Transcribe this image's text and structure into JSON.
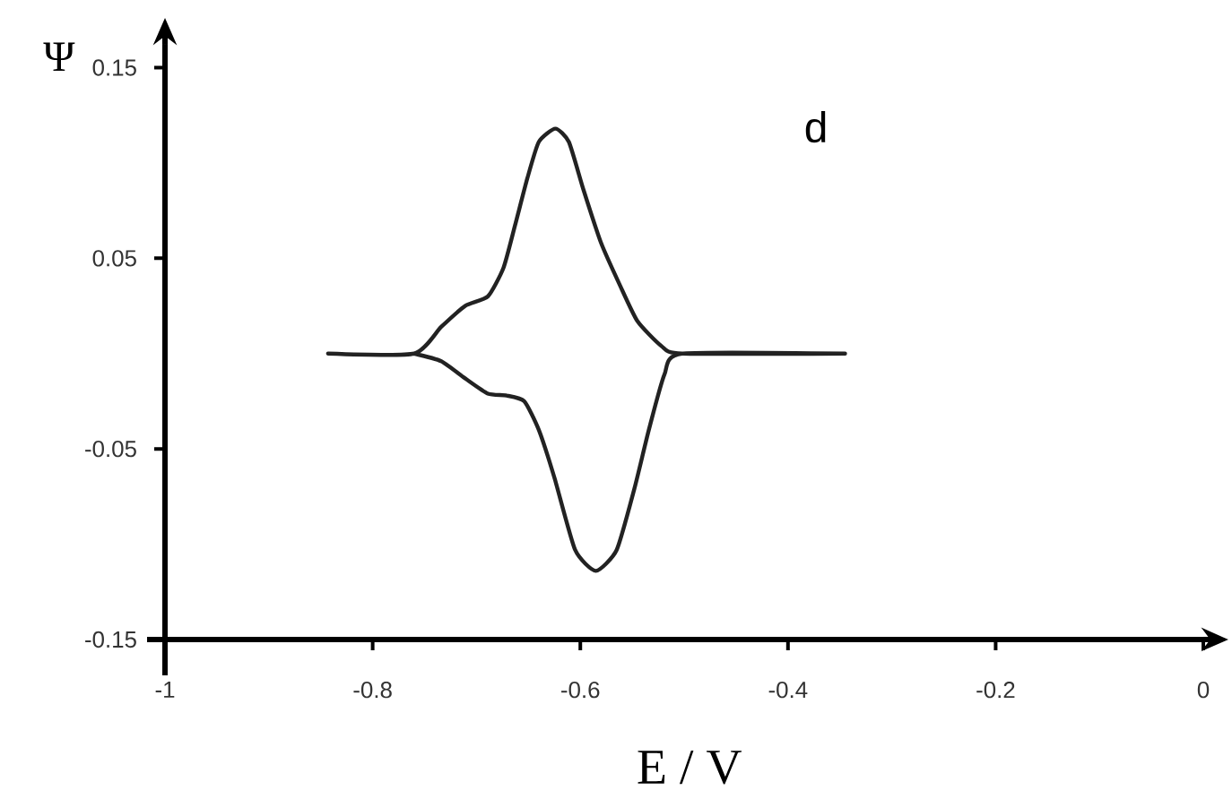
{
  "chart_data": {
    "type": "line",
    "xlabel": "E / V",
    "ylabel": "Ψ",
    "annotations": [
      "d"
    ],
    "x": [
      -0.843,
      -0.76,
      -0.734,
      -0.711,
      -0.689,
      -0.674,
      -0.663,
      -0.651,
      -0.64,
      -0.624,
      -0.611,
      -0.597,
      -0.58,
      -0.562,
      -0.545,
      -0.522,
      -0.502,
      -0.345,
      -0.502,
      -0.519,
      -0.534,
      -0.548,
      -0.565,
      -0.585,
      -0.605,
      -0.625,
      -0.64,
      -0.654,
      -0.671,
      -0.689,
      -0.711,
      -0.734,
      -0.76
    ],
    "series": [
      {
        "color": "#222222",
        "values": [
          0,
          0,
          0.014,
          0.025,
          0.03,
          0.045,
          0.067,
          0.092,
          0.111,
          0.118,
          0.111,
          0.086,
          0.058,
          0.036,
          0.017,
          0.004,
          0,
          0,
          0,
          -0.011,
          -0.04,
          -0.071,
          -0.103,
          -0.114,
          -0.103,
          -0.065,
          -0.04,
          -0.025,
          -0.022,
          -0.021,
          -0.013,
          -0.004,
          0
        ]
      }
    ],
    "xlim": [
      -1,
      0
    ],
    "ylim": [
      -0.15,
      0.162
    ],
    "xticks": [
      -1,
      -0.8,
      -0.6,
      -0.4,
      -0.2,
      0
    ],
    "yticks": [
      0.15,
      0.05,
      -0.05,
      -0.15
    ],
    "marker": "none",
    "line_style": "solid"
  }
}
